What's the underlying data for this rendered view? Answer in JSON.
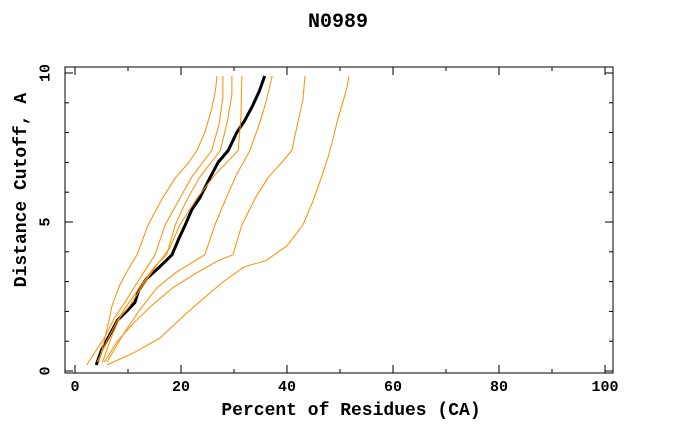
{
  "title": "N0989",
  "colors": {
    "target_curve": "#000000",
    "model_curve": "#ff8c00",
    "frame": "#000000",
    "background": "#ffffff"
  },
  "chart_data": {
    "type": "line",
    "title": "N0989",
    "xlabel": "Percent of Residues (CA)",
    "ylabel": "Distance Cutoff, A",
    "xlim": [
      0,
      100
    ],
    "ylim": [
      0,
      10
    ],
    "x_ticks": [
      0,
      20,
      40,
      60,
      80,
      100
    ],
    "x_tick_labels": [
      "0",
      "20",
      "40",
      "60",
      "80",
      "100"
    ],
    "x_minor_step": 10,
    "y_ticks": [
      0,
      5,
      10
    ],
    "y_tick_labels": [
      "0",
      "5",
      "10"
    ],
    "y_minor_step": 1,
    "grid": false,
    "legend": null,
    "series": [
      {
        "name": "black-curve",
        "color": "#000000",
        "width": 3,
        "points": [
          [
            4.0,
            0.2
          ],
          [
            5.0,
            0.7
          ],
          [
            6.5,
            1.2
          ],
          [
            8.0,
            1.7
          ],
          [
            10.0,
            2.05
          ],
          [
            11.3,
            2.3
          ],
          [
            12.0,
            2.7
          ],
          [
            13.5,
            3.1
          ],
          [
            16.0,
            3.5
          ],
          [
            18.3,
            3.9
          ],
          [
            19.5,
            4.4
          ],
          [
            20.8,
            4.9
          ],
          [
            22.0,
            5.4
          ],
          [
            23.5,
            5.8
          ],
          [
            25.5,
            6.5
          ],
          [
            27.0,
            7.0
          ],
          [
            28.9,
            7.4
          ],
          [
            30.5,
            8.0
          ],
          [
            32.0,
            8.4
          ],
          [
            33.5,
            8.9
          ],
          [
            34.8,
            9.4
          ],
          [
            35.8,
            9.9
          ]
        ]
      },
      {
        "name": "orange-curve-1",
        "color": "#ff8c00",
        "width": 1,
        "points": [
          [
            4.5,
            0.3
          ],
          [
            5.5,
            1.0
          ],
          [
            6.3,
            1.6
          ],
          [
            7.0,
            2.2
          ],
          [
            8.5,
            2.9
          ],
          [
            10.0,
            3.4
          ],
          [
            11.7,
            3.9
          ],
          [
            13.8,
            4.9
          ],
          [
            16.5,
            5.8
          ],
          [
            19.0,
            6.5
          ],
          [
            21.5,
            7.0
          ],
          [
            23.0,
            7.4
          ],
          [
            24.5,
            8.0
          ],
          [
            25.8,
            8.8
          ],
          [
            26.5,
            9.4
          ],
          [
            26.8,
            9.9
          ]
        ]
      },
      {
        "name": "orange-curve-2",
        "color": "#ff8c00",
        "width": 1,
        "points": [
          [
            2.2,
            0.2
          ],
          [
            4.0,
            0.7
          ],
          [
            5.5,
            1.1
          ],
          [
            7.5,
            1.8
          ],
          [
            9.4,
            2.3
          ],
          [
            11.5,
            2.9
          ],
          [
            13.3,
            3.4
          ],
          [
            15.1,
            3.9
          ],
          [
            17.0,
            4.9
          ],
          [
            19.5,
            5.7
          ],
          [
            22.0,
            6.5
          ],
          [
            25.8,
            7.4
          ],
          [
            27.2,
            8.3
          ],
          [
            27.9,
            9.2
          ],
          [
            27.9,
            9.9
          ]
        ]
      },
      {
        "name": "orange-curve-3",
        "color": "#ff8c00",
        "width": 1,
        "points": [
          [
            5.2,
            0.3
          ],
          [
            7.0,
            1.2
          ],
          [
            9.0,
            2.0
          ],
          [
            11.0,
            2.5
          ],
          [
            13.0,
            3.0
          ],
          [
            15.0,
            3.5
          ],
          [
            17.3,
            3.9
          ],
          [
            18.9,
            4.9
          ],
          [
            21.0,
            5.7
          ],
          [
            23.5,
            6.5
          ],
          [
            27.4,
            7.4
          ],
          [
            28.8,
            8.4
          ],
          [
            29.6,
            9.3
          ],
          [
            29.6,
            9.9
          ]
        ]
      },
      {
        "name": "orange-curve-4",
        "color": "#ff8c00",
        "width": 1,
        "points": [
          [
            4.2,
            0.3
          ],
          [
            6.0,
            1.0
          ],
          [
            8.0,
            1.7
          ],
          [
            10.4,
            2.2
          ],
          [
            12.5,
            2.8
          ],
          [
            14.8,
            3.4
          ],
          [
            17.8,
            4.1
          ],
          [
            19.8,
            4.9
          ],
          [
            23.0,
            5.8
          ],
          [
            26.5,
            6.6
          ],
          [
            30.8,
            7.4
          ],
          [
            31.3,
            8.5
          ],
          [
            31.5,
            9.9
          ]
        ]
      },
      {
        "name": "orange-curve-5",
        "color": "#ff8c00",
        "width": 1,
        "points": [
          [
            6.0,
            0.3
          ],
          [
            9.0,
            1.2
          ],
          [
            12.0,
            2.0
          ],
          [
            15.5,
            2.8
          ],
          [
            19.0,
            3.3
          ],
          [
            24.5,
            3.9
          ],
          [
            26.4,
            4.9
          ],
          [
            28.5,
            5.8
          ],
          [
            30.5,
            6.6
          ],
          [
            33.0,
            7.4
          ],
          [
            34.8,
            8.3
          ],
          [
            36.0,
            9.0
          ],
          [
            37.2,
            9.9
          ]
        ]
      },
      {
        "name": "orange-curve-6",
        "color": "#ff8c00",
        "width": 1,
        "points": [
          [
            5.5,
            0.3
          ],
          [
            8.0,
            1.0
          ],
          [
            11.0,
            1.6
          ],
          [
            14.5,
            2.2
          ],
          [
            18.5,
            2.8
          ],
          [
            23.0,
            3.3
          ],
          [
            27.0,
            3.7
          ],
          [
            29.8,
            3.9
          ],
          [
            31.5,
            4.9
          ],
          [
            34.0,
            5.8
          ],
          [
            36.5,
            6.5
          ],
          [
            39.0,
            7.0
          ],
          [
            40.9,
            7.4
          ],
          [
            42.0,
            8.3
          ],
          [
            43.0,
            9.1
          ],
          [
            43.4,
            9.9
          ]
        ]
      },
      {
        "name": "orange-curve-7",
        "color": "#ff8c00",
        "width": 1,
        "points": [
          [
            6.0,
            0.2
          ],
          [
            11.0,
            0.6
          ],
          [
            16.0,
            1.1
          ],
          [
            20.8,
            1.9
          ],
          [
            24.0,
            2.4
          ],
          [
            28.0,
            3.0
          ],
          [
            32.0,
            3.5
          ],
          [
            36.0,
            3.7
          ],
          [
            40.0,
            4.2
          ],
          [
            43.0,
            4.9
          ],
          [
            44.9,
            5.7
          ],
          [
            46.5,
            6.5
          ],
          [
            47.8,
            7.2
          ],
          [
            48.7,
            7.8
          ],
          [
            49.5,
            8.4
          ],
          [
            50.5,
            9.0
          ],
          [
            51.3,
            9.5
          ],
          [
            51.7,
            9.9
          ]
        ]
      }
    ]
  }
}
